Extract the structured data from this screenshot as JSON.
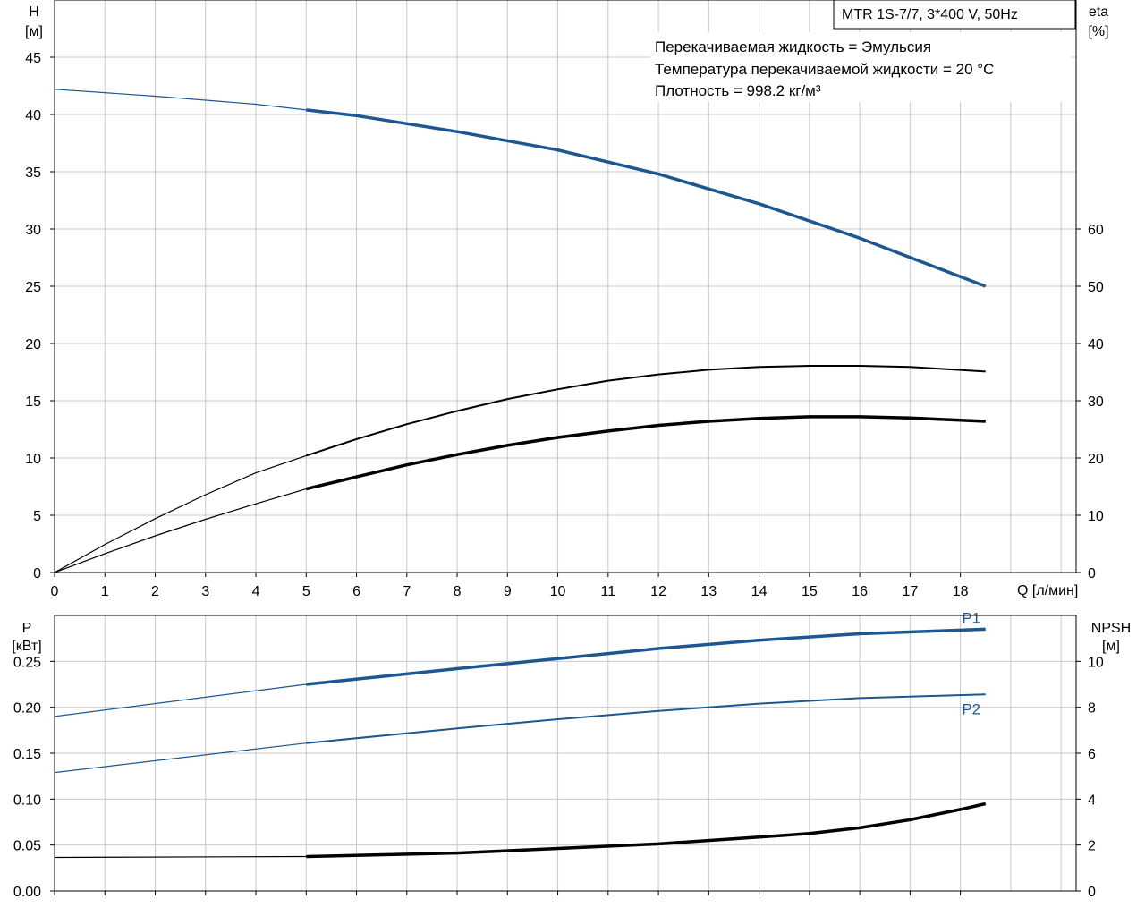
{
  "colors": {
    "blue": "#1c5791",
    "black": "#000000",
    "grid": "#c8c8c8"
  },
  "info": {
    "title": "MTR 1S-7/7, 3*400 V, 50Hz",
    "lines": [
      "Перекачиваемая жидкость = Эмульсия",
      "Температура перекачиваемой жидкости = 20 °C",
      "Плотность = 998.2 кг/м³"
    ]
  },
  "chart_data": [
    {
      "type": "line",
      "id": "upper",
      "x_label": "Q [л/мин]",
      "y_left_label": [
        "H",
        "[м]"
      ],
      "y_right_label": [
        "eta",
        "[%]"
      ],
      "xlim": [
        0,
        20.3
      ],
      "ylim_left": [
        0,
        50
      ],
      "ylim_right": [
        0,
        100
      ],
      "x_ticks": [
        0,
        1,
        2,
        3,
        4,
        5,
        6,
        7,
        8,
        9,
        10,
        11,
        12,
        13,
        14,
        15,
        16,
        17,
        18
      ],
      "y_left_ticks": [
        0,
        5,
        10,
        15,
        20,
        25,
        30,
        35,
        40,
        45
      ],
      "y_right_ticks": [
        0,
        10,
        20,
        30,
        40,
        50,
        60
      ],
      "series": [
        {
          "id": "H",
          "axis": "left",
          "color": "blue",
          "operating_from": 5,
          "x": [
            0,
            2,
            4,
            5,
            6,
            8,
            10,
            12,
            14,
            16,
            18.5
          ],
          "y": [
            42.2,
            41.6,
            40.9,
            40.4,
            39.9,
            38.5,
            36.9,
            34.8,
            32.2,
            29.2,
            25.0
          ]
        },
        {
          "id": "eta_total",
          "axis": "right",
          "color": "black",
          "width": "thin",
          "operating_from": 5,
          "x": [
            0,
            1,
            2,
            3,
            4,
            5,
            6,
            7,
            8,
            9,
            10,
            11,
            12,
            13,
            14,
            15,
            16,
            17,
            18.5
          ],
          "y": [
            0,
            4.9,
            9.4,
            13.6,
            17.4,
            20.4,
            23.3,
            25.9,
            28.2,
            30.3,
            32.0,
            33.5,
            34.6,
            35.4,
            35.9,
            36.1,
            36.1,
            35.9,
            35.1
          ]
        },
        {
          "id": "eta_pump",
          "axis": "right",
          "color": "black",
          "width": "thick",
          "operating_from": 5,
          "x": [
            0,
            1,
            2,
            3,
            4,
            5,
            6,
            7,
            8,
            9,
            10,
            11,
            12,
            13,
            14,
            15,
            16,
            17,
            18.5
          ],
          "y": [
            0,
            3.3,
            6.4,
            9.3,
            12.0,
            14.6,
            16.7,
            18.8,
            20.6,
            22.2,
            23.6,
            24.7,
            25.7,
            26.4,
            26.9,
            27.2,
            27.2,
            27.0,
            26.4
          ]
        }
      ]
    },
    {
      "type": "line",
      "id": "lower",
      "y_left_label": [
        "P",
        "[кВт]"
      ],
      "y_right_label": [
        "NPSH",
        "[м]"
      ],
      "xlim": [
        0,
        20.3
      ],
      "ylim_left": [
        0,
        0.3
      ],
      "ylim_right": [
        0,
        12
      ],
      "y_left_ticks": [
        0.0,
        0.05,
        0.1,
        0.15,
        0.2,
        0.25
      ],
      "y_left_tick_labels": [
        "0.00",
        "0.05",
        "0.10",
        "0.15",
        "0.20",
        "0.25"
      ],
      "y_right_ticks": [
        0,
        2,
        4,
        6,
        8,
        10
      ],
      "series": [
        {
          "id": "P1",
          "name": "P1",
          "axis": "left",
          "color": "blue",
          "operating_from": 5,
          "x": [
            0,
            5,
            8,
            10,
            12,
            14,
            16,
            18.5
          ],
          "y": [
            0.19,
            0.225,
            0.242,
            0.253,
            0.264,
            0.273,
            0.28,
            0.285
          ]
        },
        {
          "id": "P2",
          "name": "P2",
          "axis": "left",
          "color": "blue",
          "width": "thin",
          "operating_from": 5,
          "x": [
            0,
            5,
            8,
            10,
            12,
            14,
            16,
            18.5
          ],
          "y": [
            0.129,
            0.161,
            0.177,
            0.187,
            0.196,
            0.204,
            0.21,
            0.214
          ]
        },
        {
          "id": "NPSH",
          "axis": "right",
          "color": "black",
          "operating_from": 5,
          "x": [
            0,
            5,
            8,
            10,
            12,
            14,
            15,
            16,
            17,
            18,
            18.5
          ],
          "y": [
            1.46,
            1.5,
            1.65,
            1.85,
            2.05,
            2.35,
            2.5,
            2.75,
            3.1,
            3.55,
            3.8
          ]
        }
      ]
    }
  ]
}
